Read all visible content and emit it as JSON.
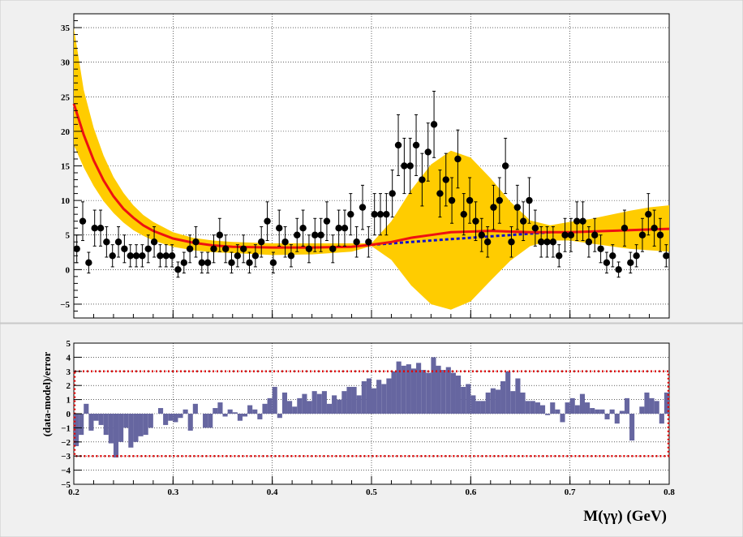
{
  "chart_data": [
    {
      "type": "scatter",
      "panel": "fit",
      "xlim": [
        0.2,
        0.8
      ],
      "ylim": [
        -7,
        37
      ],
      "grid": true,
      "legend": "none",
      "x_ticks": [
        "0.2",
        "0.3",
        "0.4",
        "0.5",
        "0.6",
        "0.7",
        "0.8"
      ],
      "y_ticks": [
        "−5",
        "0",
        "5",
        "10",
        "15",
        "20",
        "25",
        "30",
        "35"
      ],
      "y_tick_values": [
        -5,
        0,
        5,
        10,
        15,
        20,
        25,
        30,
        35
      ],
      "x_tick_values": [
        0.2,
        0.3,
        0.4,
        0.5,
        0.6,
        0.7,
        0.8
      ],
      "colors": {
        "band": "#ffcc00",
        "model": "#ee1111",
        "background": "#1111cc",
        "points": "#000000"
      },
      "series": [
        {
          "kind": "data-points-with-errors",
          "x": [
            0.203,
            0.209,
            0.215,
            0.221,
            0.227,
            0.233,
            0.239,
            0.245,
            0.251,
            0.257,
            0.263,
            0.269,
            0.275,
            0.281,
            0.287,
            0.293,
            0.299,
            0.305,
            0.311,
            0.317,
            0.323,
            0.329,
            0.335,
            0.341,
            0.347,
            0.353,
            0.359,
            0.365,
            0.371,
            0.377,
            0.383,
            0.389,
            0.395,
            0.401,
            0.407,
            0.413,
            0.419,
            0.425,
            0.431,
            0.437,
            0.443,
            0.449,
            0.455,
            0.461,
            0.467,
            0.473,
            0.479,
            0.485,
            0.491,
            0.497,
            0.503,
            0.509,
            0.515,
            0.521,
            0.527,
            0.533,
            0.539,
            0.545,
            0.551,
            0.557,
            0.563,
            0.569,
            0.575,
            0.581,
            0.587,
            0.593,
            0.599,
            0.605,
            0.611,
            0.617,
            0.623,
            0.629,
            0.635,
            0.641,
            0.647,
            0.653,
            0.659,
            0.665,
            0.671,
            0.677,
            0.683,
            0.689,
            0.695,
            0.701,
            0.707,
            0.713,
            0.719,
            0.725,
            0.731,
            0.737,
            0.743,
            0.749,
            0.755,
            0.761,
            0.767,
            0.773,
            0.779,
            0.785,
            0.791,
            0.797
          ],
          "y": [
            3,
            7,
            1,
            6,
            6,
            4,
            2,
            4,
            3,
            2,
            2,
            2,
            3,
            4,
            2,
            2,
            2,
            0,
            1,
            3,
            4,
            1,
            1,
            3,
            5,
            3,
            1,
            2,
            3,
            1,
            2,
            4,
            7,
            1,
            6,
            4,
            2,
            5,
            6,
            3,
            5,
            5,
            7,
            3,
            6,
            6,
            8,
            4,
            9,
            4,
            8,
            8,
            8,
            11,
            18,
            15,
            15,
            18,
            13,
            17,
            21,
            11,
            13,
            10,
            16,
            8,
            10,
            7,
            5,
            4,
            9,
            10,
            15,
            4,
            9,
            7,
            10,
            6,
            4,
            4,
            4,
            2,
            5,
            5,
            7,
            7,
            4,
            5,
            3,
            1,
            2,
            0,
            6,
            1,
            2,
            5,
            8,
            6,
            5,
            2
          ],
          "yerr": [
            2,
            2.8,
            1.5,
            2.6,
            2.6,
            2.2,
            1.6,
            2.2,
            2,
            1.6,
            1.6,
            1.6,
            2,
            2.2,
            1.6,
            1.6,
            1.6,
            1.1,
            1.5,
            2,
            2.2,
            1.5,
            1.5,
            2,
            2.4,
            2,
            1.5,
            1.6,
            2,
            1.5,
            1.6,
            2.2,
            2.8,
            1.5,
            2.6,
            2.2,
            1.6,
            2.4,
            2.6,
            2,
            2.4,
            2.4,
            2.8,
            2,
            2.6,
            2.6,
            3,
            2.2,
            3.2,
            2.2,
            3,
            3,
            3,
            3.4,
            4.4,
            4,
            4,
            4.4,
            3.8,
            4.2,
            4.8,
            3.4,
            3.8,
            3.3,
            4.2,
            3,
            3.3,
            2.8,
            2.4,
            2.2,
            3.2,
            3.3,
            4,
            2.2,
            3.2,
            2.8,
            3.3,
            2.6,
            2.2,
            2.2,
            2.2,
            1.6,
            2.4,
            2.4,
            2.8,
            2.8,
            2.2,
            2.4,
            2,
            1.5,
            1.6,
            1.1,
            2.6,
            1.5,
            1.6,
            2.4,
            3,
            2.6,
            2.4,
            1.6
          ]
        },
        {
          "kind": "model-curve",
          "x": [
            0.2,
            0.21,
            0.22,
            0.23,
            0.24,
            0.25,
            0.26,
            0.27,
            0.28,
            0.3,
            0.32,
            0.34,
            0.36,
            0.4,
            0.44,
            0.48,
            0.5,
            0.52,
            0.54,
            0.56,
            0.58,
            0.6,
            0.62,
            0.64,
            0.66,
            0.68,
            0.7,
            0.72,
            0.74,
            0.76,
            0.78,
            0.8
          ],
          "y": [
            24,
            19.5,
            15.8,
            12.9,
            10.6,
            8.8,
            7.5,
            6.4,
            5.6,
            4.5,
            3.9,
            3.5,
            3.3,
            3.2,
            3.2,
            3.3,
            3.6,
            4.0,
            4.6,
            5.0,
            5.4,
            5.5,
            5.6,
            5.5,
            5.4,
            5.4,
            5.4,
            5.5,
            5.6,
            5.7,
            5.8,
            5.9
          ]
        },
        {
          "kind": "background-curve",
          "x": [
            0.5,
            0.52,
            0.54,
            0.56,
            0.58,
            0.6,
            0.62,
            0.64,
            0.66,
            0.68
          ],
          "y": [
            3.6,
            3.8,
            4.0,
            4.2,
            4.4,
            4.6,
            4.8,
            5.0,
            5.2,
            5.4
          ]
        },
        {
          "kind": "uncertainty-band",
          "x": [
            0.2,
            0.21,
            0.22,
            0.23,
            0.24,
            0.25,
            0.26,
            0.27,
            0.28,
            0.3,
            0.32,
            0.34,
            0.36,
            0.4,
            0.44,
            0.48,
            0.5,
            0.52,
            0.54,
            0.56,
            0.58,
            0.6,
            0.62,
            0.64,
            0.66,
            0.68,
            0.7,
            0.72,
            0.74,
            0.76,
            0.78,
            0.8
          ],
          "upper": [
            35,
            26,
            20.5,
            16.5,
            13.4,
            11.1,
            9.3,
            7.9,
            6.9,
            5.4,
            4.6,
            4.2,
            4.0,
            3.8,
            3.8,
            3.8,
            3.8,
            7.0,
            11.5,
            15.2,
            17.2,
            16.2,
            13.2,
            9.8,
            7.1,
            6.4,
            6.9,
            7.3,
            7.9,
            8.5,
            9.0,
            9.3
          ],
          "lower": [
            18,
            14.8,
            12.1,
            9.9,
            8.2,
            6.8,
            5.7,
            4.9,
            4.2,
            3.3,
            2.8,
            2.5,
            2.4,
            2.1,
            2.2,
            2.6,
            3.4,
            1.4,
            -2.3,
            -5.0,
            -5.8,
            -4.6,
            -1.6,
            1.3,
            3.4,
            4.2,
            4.2,
            3.8,
            3.4,
            3.0,
            2.8,
            2.6
          ]
        }
      ]
    },
    {
      "type": "bar",
      "panel": "residuals",
      "ylabel": "(data-model)/error",
      "xlabel": "M(γγ) (GeV)",
      "xlim": [
        0.2,
        0.8
      ],
      "ylim": [
        -5,
        5
      ],
      "grid": true,
      "legend": "none",
      "x_ticks": [
        "0.2",
        "0.3",
        "0.4",
        "0.5",
        "0.6",
        "0.7",
        "0.8"
      ],
      "x_tick_values": [
        0.2,
        0.3,
        0.4,
        0.5,
        0.6,
        0.7,
        0.8
      ],
      "y_ticks": [
        "−5",
        "−4",
        "−3",
        "−2",
        "−1",
        "0",
        "1",
        "2",
        "3",
        "4",
        "5"
      ],
      "y_tick_values": [
        -5,
        -4,
        -3,
        -2,
        -1,
        0,
        1,
        2,
        3,
        4,
        5
      ],
      "bin_width": 0.005,
      "reference_lines": [
        3,
        -3
      ],
      "colors": {
        "bars": "#6666a0",
        "box": "#dd0000"
      },
      "x": [
        0.2,
        0.205,
        0.21,
        0.215,
        0.22,
        0.225,
        0.23,
        0.235,
        0.24,
        0.245,
        0.25,
        0.255,
        0.26,
        0.265,
        0.27,
        0.275,
        0.28,
        0.285,
        0.29,
        0.295,
        0.3,
        0.305,
        0.31,
        0.315,
        0.32,
        0.325,
        0.33,
        0.335,
        0.34,
        0.345,
        0.35,
        0.355,
        0.36,
        0.365,
        0.37,
        0.375,
        0.38,
        0.385,
        0.39,
        0.395,
        0.4,
        0.405,
        0.41,
        0.415,
        0.42,
        0.425,
        0.43,
        0.435,
        0.44,
        0.445,
        0.45,
        0.455,
        0.46,
        0.465,
        0.47,
        0.475,
        0.48,
        0.485,
        0.49,
        0.495,
        0.5,
        0.505,
        0.51,
        0.515,
        0.52,
        0.525,
        0.53,
        0.535,
        0.54,
        0.545,
        0.55,
        0.555,
        0.56,
        0.565,
        0.57,
        0.575,
        0.58,
        0.585,
        0.59,
        0.595,
        0.6,
        0.605,
        0.61,
        0.615,
        0.62,
        0.625,
        0.63,
        0.635,
        0.64,
        0.645,
        0.65,
        0.655,
        0.66,
        0.665,
        0.67,
        0.675,
        0.68,
        0.685,
        0.69,
        0.695,
        0.7,
        0.705,
        0.71,
        0.715,
        0.72,
        0.725,
        0.73,
        0.735,
        0.74,
        0.745,
        0.75,
        0.755,
        0.76,
        0.765,
        0.77,
        0.775,
        0.78,
        0.785,
        0.79,
        0.795
      ],
      "values": [
        -2.3,
        -1.5,
        0.7,
        -1.2,
        -0.5,
        -0.8,
        -1.5,
        -2.1,
        -3.1,
        -2.0,
        -1.0,
        -2.4,
        -2.0,
        -1.6,
        -1.5,
        -1.0,
        0,
        0.4,
        -0.8,
        -0.5,
        -0.6,
        -0.3,
        0.3,
        -1.2,
        0.7,
        0,
        -1.0,
        -1.0,
        0.4,
        0.8,
        -0.2,
        0.3,
        0.1,
        -0.5,
        -0.2,
        0.6,
        0.3,
        -0.4,
        0.7,
        1.1,
        1.9,
        -0.3,
        1.5,
        0.9,
        0.5,
        1.1,
        1.4,
        0.9,
        1.6,
        1.4,
        1.6,
        0.7,
        1.3,
        1.0,
        1.6,
        1.9,
        1.9,
        1.3,
        2.3,
        2.5,
        1.8,
        2.4,
        2.1,
        2.5,
        3.0,
        3.7,
        3.4,
        3.5,
        3.2,
        3.6,
        3.1,
        2.9,
        4.0,
        3.4,
        3.1,
        3.3,
        2.9,
        2.7,
        1.9,
        2.1,
        1.3,
        0.9,
        0.9,
        1.5,
        1.8,
        1.7,
        2.3,
        3.0,
        1.6,
        2.5,
        1.5,
        0.9,
        0.9,
        0.8,
        0.6,
        -0.1,
        0.8,
        0.3,
        -0.6,
        0.8,
        1.1,
        0.6,
        1.4,
        0.8,
        0.4,
        0.3,
        0.3,
        -0.4,
        0.3,
        -0.7,
        0.2,
        1.1,
        -1.9,
        0,
        0.5,
        1.5,
        1.1,
        0.9,
        -0.7,
        1.5
      ]
    }
  ],
  "overlay": {
    "x_axis_title": "M(γγ) (GeV)",
    "y_axis_title_bottom": "(data-model)/error"
  }
}
